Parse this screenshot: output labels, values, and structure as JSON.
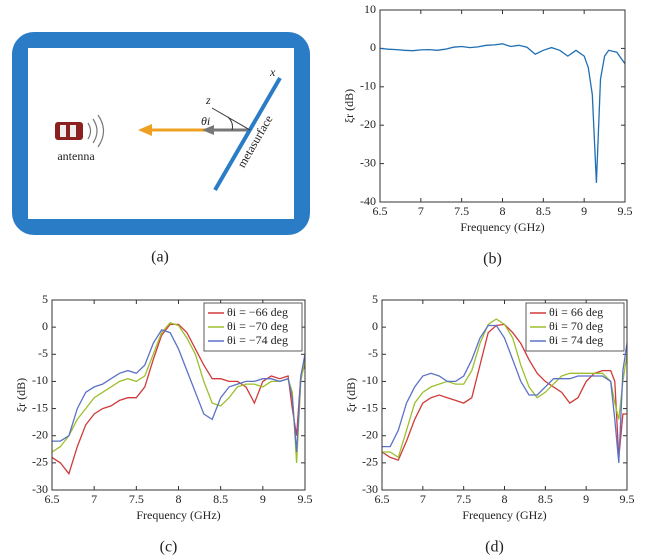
{
  "diagram": {
    "caption": "(a)",
    "antenna_label": "antenna",
    "surface_label": "metasurface",
    "x_label": "x",
    "z_label": "z",
    "angle_label": "θi"
  },
  "chart_data": [
    {
      "type": "line",
      "caption": "(b)",
      "xlabel": "Frequency (GHz)",
      "ylabel": "ξr (dB)",
      "xlim": [
        6.5,
        9.5
      ],
      "ylim": [
        -40,
        10
      ],
      "xticks": [
        6.5,
        7,
        7.5,
        8,
        8.5,
        9,
        9.5
      ],
      "yticks": [
        -40,
        -30,
        -20,
        -10,
        0,
        10
      ],
      "x": [
        6.5,
        6.6,
        6.7,
        6.8,
        6.9,
        7.0,
        7.1,
        7.2,
        7.3,
        7.4,
        7.5,
        7.6,
        7.7,
        7.8,
        7.9,
        8.0,
        8.1,
        8.2,
        8.3,
        8.4,
        8.5,
        8.6,
        8.7,
        8.8,
        8.9,
        9.0,
        9.05,
        9.1,
        9.15,
        9.2,
        9.25,
        9.3,
        9.4,
        9.5
      ],
      "series": [
        {
          "color": "#1f6fb4",
          "values": [
            0,
            -0.2,
            -0.3,
            -0.5,
            -0.6,
            -0.4,
            -0.3,
            -0.5,
            -0.2,
            0.3,
            0.5,
            0.2,
            0.4,
            0.8,
            0.9,
            1.2,
            0.5,
            0.8,
            0.3,
            -1.5,
            -0.5,
            0.2,
            -0.5,
            -2,
            -0.5,
            -2,
            -5,
            -12,
            -35,
            -8,
            -2,
            -0.5,
            -1,
            -4
          ]
        }
      ]
    },
    {
      "type": "line",
      "caption": "(c)",
      "xlabel": "Frequency (GHz)",
      "ylabel": "ξr (dB)",
      "legend": "upper right",
      "xlim": [
        6.5,
        9.5
      ],
      "ylim": [
        -30,
        5
      ],
      "xticks": [
        6.5,
        7,
        7.5,
        8,
        8.5,
        9,
        9.5
      ],
      "yticks": [
        -30,
        -25,
        -20,
        -15,
        -10,
        -5,
        0,
        5
      ],
      "x": [
        6.5,
        6.6,
        6.7,
        6.8,
        6.9,
        7.0,
        7.1,
        7.2,
        7.3,
        7.4,
        7.5,
        7.6,
        7.7,
        7.8,
        7.9,
        8.0,
        8.1,
        8.2,
        8.3,
        8.4,
        8.5,
        8.6,
        8.7,
        8.8,
        8.9,
        9.0,
        9.1,
        9.2,
        9.3,
        9.35,
        9.4,
        9.45,
        9.5
      ],
      "series": [
        {
          "name": "θi = −66 deg",
          "color": "#d03a3a",
          "values": [
            -24,
            -25,
            -27,
            -22,
            -18,
            -16,
            -15,
            -14.5,
            -13.5,
            -13,
            -13,
            -11,
            -6,
            -1.5,
            0.5,
            0.5,
            -1,
            -4,
            -7,
            -9.5,
            -9.5,
            -10,
            -10,
            -11,
            -14,
            -10,
            -9,
            -9.5,
            -9,
            -15,
            -20,
            -9,
            -7
          ]
        },
        {
          "name": "θi = −70 deg",
          "color": "#9cbf2e",
          "values": [
            -23,
            -22,
            -20,
            -17,
            -15,
            -13,
            -12,
            -11,
            -10,
            -9.5,
            -10,
            -9,
            -5,
            -1,
            0.8,
            0.3,
            -2,
            -5,
            -10,
            -14,
            -14.5,
            -13,
            -11,
            -10.5,
            -10.5,
            -11,
            -10,
            -10,
            -9.5,
            -12,
            -25,
            -10,
            -6
          ]
        },
        {
          "name": "θi = −74 deg",
          "color": "#5b72c6",
          "values": [
            -21,
            -21,
            -20,
            -15,
            -12,
            -11,
            -10.5,
            -9.5,
            -8.5,
            -8,
            -8.5,
            -7,
            -3,
            -0.5,
            -1,
            -4,
            -8,
            -12,
            -16,
            -17,
            -13,
            -11,
            -10.5,
            -10,
            -10,
            -9.5,
            -9.5,
            -10,
            -9.5,
            -13,
            -23,
            -9,
            -5
          ]
        }
      ]
    },
    {
      "type": "line",
      "caption": "(d)",
      "xlabel": "Frequency (GHz)",
      "ylabel": "ξr (dB)",
      "legend": "upper right",
      "xlim": [
        6.5,
        9.5
      ],
      "ylim": [
        -30,
        5
      ],
      "xticks": [
        6.5,
        7,
        7.5,
        8,
        8.5,
        9,
        9.5
      ],
      "yticks": [
        -30,
        -25,
        -20,
        -15,
        -10,
        -5,
        0,
        5
      ],
      "x": [
        6.5,
        6.6,
        6.7,
        6.8,
        6.9,
        7.0,
        7.1,
        7.2,
        7.3,
        7.4,
        7.5,
        7.6,
        7.7,
        7.8,
        7.9,
        8.0,
        8.1,
        8.2,
        8.3,
        8.4,
        8.5,
        8.6,
        8.7,
        8.8,
        8.9,
        9.0,
        9.1,
        9.2,
        9.3,
        9.35,
        9.4,
        9.45,
        9.5
      ],
      "series": [
        {
          "name": "θi = 66 deg",
          "color": "#d03a3a",
          "values": [
            -23,
            -24,
            -24.5,
            -21,
            -17,
            -14,
            -13,
            -12.5,
            -13,
            -13.5,
            -14,
            -13,
            -7,
            -1,
            0.3,
            0.5,
            -1,
            -3,
            -6,
            -8.5,
            -10,
            -11,
            -12,
            -14,
            -13,
            -10,
            -8.5,
            -8,
            -8,
            -10,
            -24,
            -16,
            -16
          ]
        },
        {
          "name": "θi = 70 deg",
          "color": "#9cbf2e",
          "values": [
            -23,
            -23,
            -24,
            -19,
            -14,
            -12,
            -11,
            -10.5,
            -10,
            -10.5,
            -10.5,
            -8,
            -3,
            0.5,
            1.5,
            0.5,
            -2,
            -7,
            -11,
            -13,
            -12,
            -10.5,
            -9,
            -8.5,
            -8.5,
            -8.5,
            -8.5,
            -8.5,
            -10,
            -14,
            -17,
            -10,
            -5
          ]
        },
        {
          "name": "θi = 74 deg",
          "color": "#5b72c6",
          "values": [
            -22,
            -22,
            -19,
            -14,
            -11,
            -9,
            -8.5,
            -9,
            -10,
            -10,
            -9,
            -6,
            -2,
            0.3,
            0.3,
            -2,
            -6,
            -10,
            -12.5,
            -12.5,
            -11,
            -9.5,
            -9.5,
            -9.5,
            -9,
            -9,
            -9,
            -9,
            -10,
            -17,
            -25,
            -8,
            -3
          ]
        }
      ]
    }
  ]
}
